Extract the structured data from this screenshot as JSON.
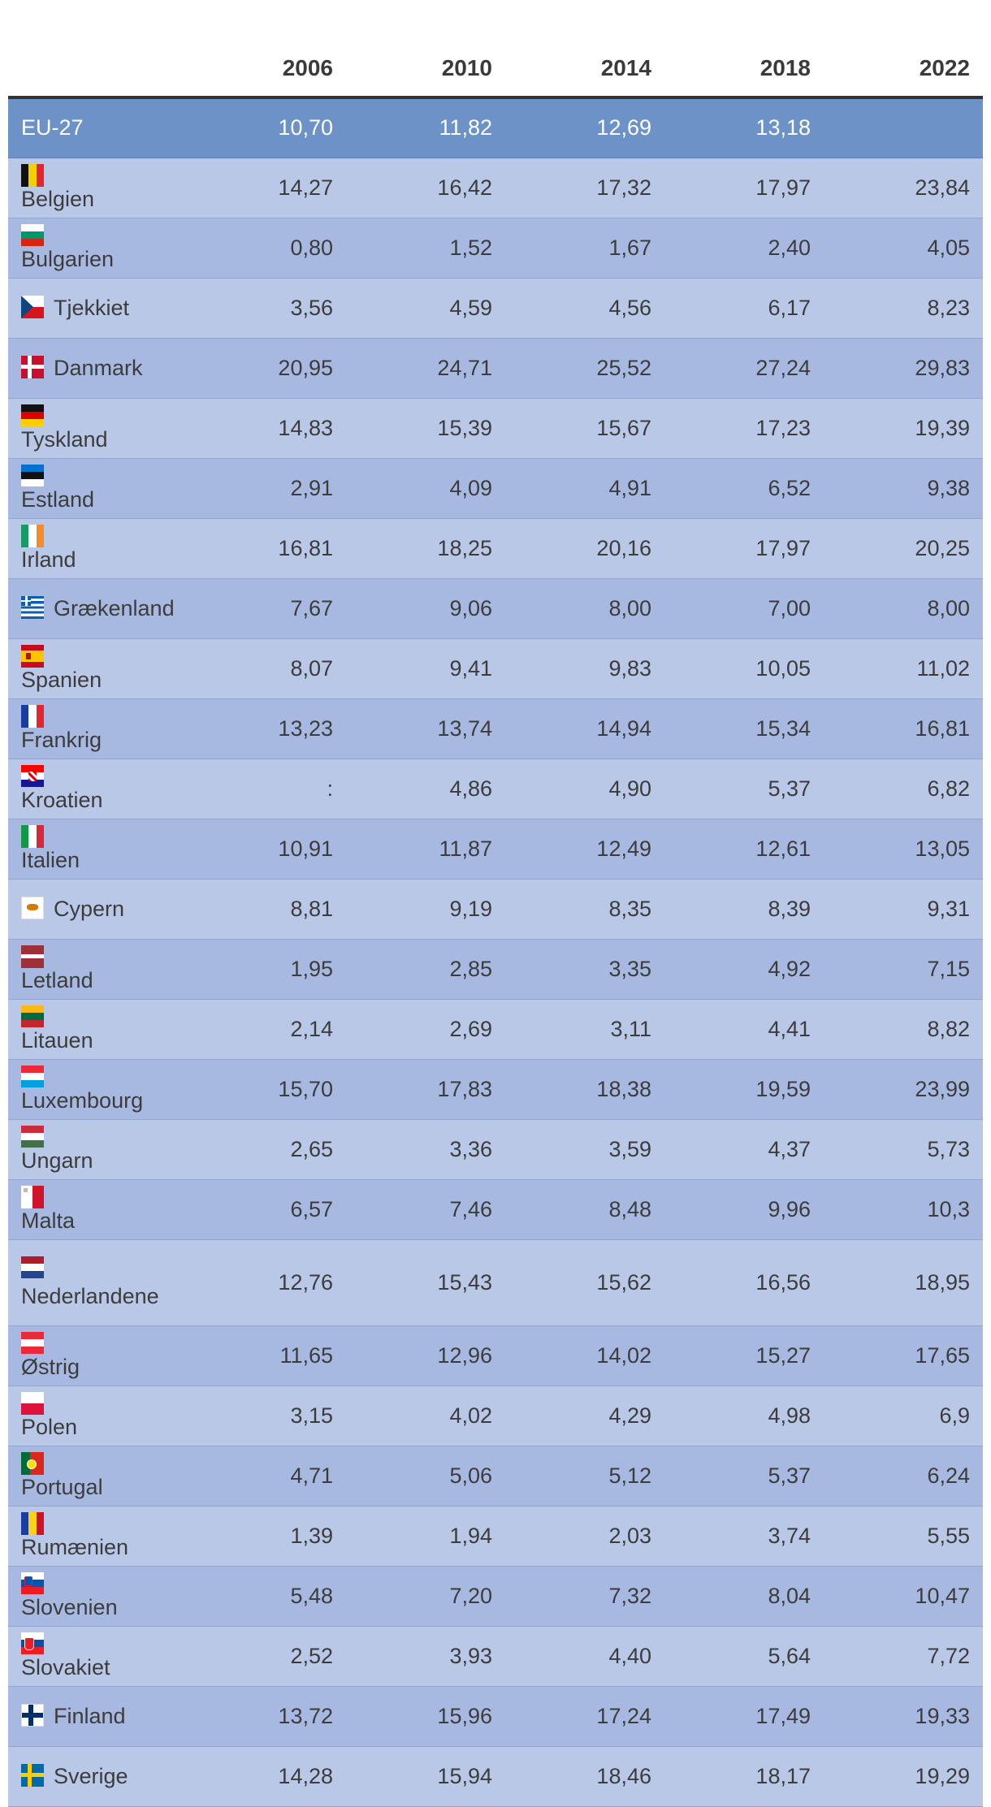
{
  "header": {
    "corner": "",
    "years": [
      "2006",
      "2010",
      "2014",
      "2018",
      "2022"
    ]
  },
  "eu_row": {
    "label": "EU-27",
    "values": [
      "10,70",
      "11,82",
      "12,69",
      "13,18",
      ""
    ]
  },
  "rows": [
    {
      "name": "Belgien",
      "flag": "flag-belgium-icon",
      "values": [
        "14,27",
        "16,42",
        "17,32",
        "17,97",
        "23,84"
      ]
    },
    {
      "name": "Bulgarien",
      "flag": "flag-bulgaria-icon",
      "values": [
        "0,80",
        "1,52",
        "1,67",
        "2,40",
        "4,05"
      ]
    },
    {
      "name": "Tjekkiet",
      "flag": "flag-czechia-icon",
      "values": [
        "3,56",
        "4,59",
        "4,56",
        "6,17",
        "8,23"
      ]
    },
    {
      "name": "Danmark",
      "flag": "flag-denmark-icon",
      "values": [
        "20,95",
        "24,71",
        "25,52",
        "27,24",
        "29,83"
      ]
    },
    {
      "name": "Tyskland",
      "flag": "flag-germany-icon",
      "values": [
        "14,83",
        "15,39",
        "15,67",
        "17,23",
        "19,39"
      ]
    },
    {
      "name": "Estland",
      "flag": "flag-estonia-icon",
      "values": [
        "2,91",
        "4,09",
        "4,91",
        "6,52",
        "9,38"
      ]
    },
    {
      "name": "Irland",
      "flag": "flag-ireland-icon",
      "values": [
        "16,81",
        "18,25",
        "20,16",
        "17,97",
        "20,25"
      ]
    },
    {
      "name": "Grækenland",
      "flag": "flag-greece-icon",
      "values": [
        "7,67",
        "9,06",
        "8,00",
        "7,00",
        "8,00"
      ]
    },
    {
      "name": "Spanien",
      "flag": "flag-spain-icon",
      "values": [
        "8,07",
        "9,41",
        "9,83",
        "10,05",
        "11,02"
      ]
    },
    {
      "name": "Frankrig",
      "flag": "flag-france-icon",
      "values": [
        "13,23",
        "13,74",
        "14,94",
        "15,34",
        "16,81"
      ]
    },
    {
      "name": "Kroatien",
      "flag": "flag-croatia-icon",
      "values": [
        ":",
        "4,86",
        "4,90",
        "5,37",
        "6,82"
      ]
    },
    {
      "name": "Italien",
      "flag": "flag-italy-icon",
      "values": [
        "10,91",
        "11,87",
        "12,49",
        "12,61",
        "13,05"
      ]
    },
    {
      "name": "Cypern",
      "flag": "flag-cyprus-icon",
      "values": [
        "8,81",
        "9,19",
        "8,35",
        "8,39",
        "9,31"
      ]
    },
    {
      "name": "Letland",
      "flag": "flag-latvia-icon",
      "values": [
        "1,95",
        "2,85",
        "3,35",
        "4,92",
        "7,15"
      ]
    },
    {
      "name": "Litauen",
      "flag": "flag-lithuania-icon",
      "values": [
        "2,14",
        "2,69",
        "3,11",
        "4,41",
        "8,82"
      ]
    },
    {
      "name": "Luxembourg",
      "flag": "flag-luxembourg-icon",
      "values": [
        "15,70",
        "17,83",
        "18,38",
        "19,59",
        "23,99"
      ]
    },
    {
      "name": "Ungarn",
      "flag": "flag-hungary-icon",
      "values": [
        "2,65",
        "3,36",
        "3,59",
        "4,37",
        "5,73"
      ]
    },
    {
      "name": "Malta",
      "flag": "flag-malta-icon",
      "values": [
        "6,57",
        "7,46",
        "8,48",
        "9,96",
        "10,3"
      ]
    },
    {
      "name": "Nederlandene",
      "flag": "flag-netherlands-icon",
      "values": [
        "12,76",
        "15,43",
        "15,62",
        "16,56",
        "18,95"
      ]
    },
    {
      "name": "Østrig",
      "flag": "flag-austria-icon",
      "values": [
        "11,65",
        "12,96",
        "14,02",
        "15,27",
        "17,65"
      ]
    },
    {
      "name": "Polen",
      "flag": "flag-poland-icon",
      "values": [
        "3,15",
        "4,02",
        "4,29",
        "4,98",
        "6,9"
      ]
    },
    {
      "name": "Portugal",
      "flag": "flag-portugal-icon",
      "values": [
        "4,71",
        "5,06",
        "5,12",
        "5,37",
        "6,24"
      ]
    },
    {
      "name": "Rumænien",
      "flag": "flag-romania-icon",
      "values": [
        "1,39",
        "1,94",
        "2,03",
        "3,74",
        "5,55"
      ]
    },
    {
      "name": "Slovenien",
      "flag": "flag-slovenia-icon",
      "values": [
        "5,48",
        "7,20",
        "7,32",
        "8,04",
        "10,47"
      ]
    },
    {
      "name": "Slovakiet",
      "flag": "flag-slovakia-icon",
      "values": [
        "2,52",
        "3,93",
        "4,40",
        "5,64",
        "7,72"
      ]
    },
    {
      "name": "Finland",
      "flag": "flag-finland-icon",
      "values": [
        "13,72",
        "15,96",
        "17,24",
        "17,49",
        "19,33"
      ]
    },
    {
      "name": "Sverige",
      "flag": "flag-sweden-icon",
      "values": [
        "14,28",
        "15,94",
        "18,46",
        "18,17",
        "19,29"
      ]
    }
  ],
  "colors": {
    "header_rule": "#333333",
    "eu_row_bg": "#6d92c8",
    "row_light": "#bac8e8",
    "row_dark": "#a7b9e1",
    "text": "#3c3c3c"
  }
}
